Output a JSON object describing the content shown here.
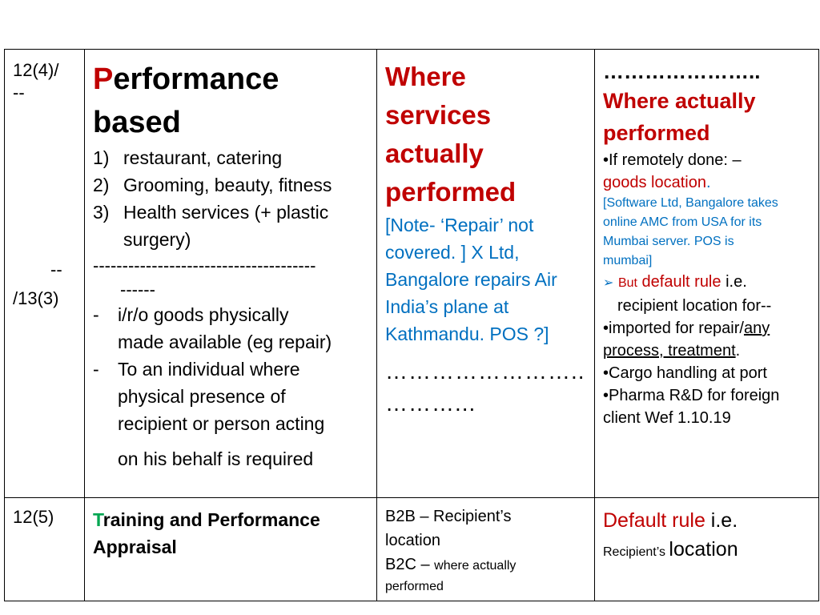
{
  "row1": {
    "ref_top_a": "12(4)/",
    "ref_top_b": "--",
    "ref_bottom_dash": "--",
    "ref_bottom": "/13(3)",
    "col2": {
      "title_first_letter": "P",
      "title_rest": "erformance",
      "title_line2": "based",
      "items": [
        {
          "num": "1)",
          "text": "restaurant, catering"
        },
        {
          "num": "2)",
          "text": "Grooming, beauty, fitness"
        },
        {
          "num": "3)",
          "text": "Health services (+ plastic"
        }
      ],
      "item3_cont": "surgery)",
      "separator": "--------------------------------------",
      "separator_cont": "------",
      "bullets": [
        {
          "mark": "-",
          "text": "i/r/o  goods physically"
        },
        {
          "mark": "",
          "text": "made available (eg repair)"
        },
        {
          "mark": "-",
          "text": "To an individual where"
        },
        {
          "mark": "",
          "text": "physical presence of"
        },
        {
          "mark": "",
          "text": "recipient or person acting"
        }
      ],
      "last_line": "on his behalf is required"
    },
    "col3": {
      "title_lines": [
        "Where",
        "services",
        "actually",
        "performed"
      ],
      "note_lines": [
        "[Note- ‘Repair’ not",
        "covered. ] X Ltd,",
        "Bangalore repairs Air",
        "India’s plane at",
        "Kathmandu. POS ?]"
      ],
      "dots1": "……………………..",
      "dots2": "………..."
    },
    "col4": {
      "dots": "…………………..",
      "title_lines": [
        "Where actually",
        "performed"
      ],
      "remote_line": "•If remotely done: –",
      "goods_location": "goods location",
      "goods_dot": ".",
      "software_lines": [
        "[Software Ltd, Bangalore takes",
        "online AMC  from USA for its",
        "Mumbai server. POS is",
        "mumbai]"
      ],
      "arrow": "➢",
      "but": "But",
      "default_rule": "default rule",
      "ie": " i.e.",
      "recipient_line": "recipient location for--",
      "imported_pre": "•imported for repair/",
      "imported_any": "any",
      "process_line": "process, treatment",
      "process_dot": ".",
      "cargo_line": "•Cargo handling at port",
      "pharma_line": "•Pharma R&D for foreign",
      "client_line": "client  Wef 1.10.19"
    }
  },
  "row2": {
    "ref": "12(5)",
    "col2": {
      "first_letter": "T",
      "rest": "raining and Performance",
      "line2": "Appraisal"
    },
    "col3": {
      "b2b": "B2B – Recipient’s",
      "b2b_cont": "location",
      "b2c": "B2C – ",
      "b2c_small": "where actually",
      "b2c_cont": "performed"
    },
    "col4": {
      "default_rule": "Default rule",
      "ie": " i.e.",
      "recipients_small": "Recipient’s ",
      "location": "location"
    }
  }
}
